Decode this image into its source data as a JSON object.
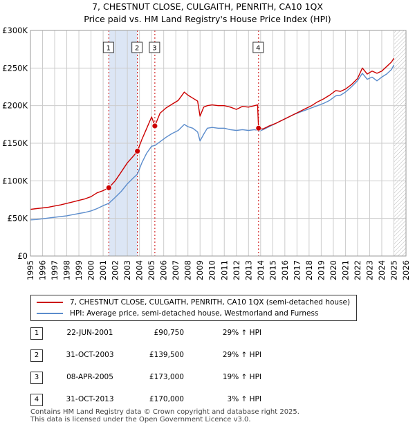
{
  "title_line1": "7, CHESTNUT CLOSE, CULGAITH, PENRITH, CA10 1QX",
  "title_line2": "Price paid vs. HM Land Registry's House Price Index (HPI)",
  "colors": {
    "property": "#cc0000",
    "hpi": "#5b8ccc",
    "shade": "#dce6f5",
    "marker_line": "#cc0000",
    "grid": "#cccccc"
  },
  "legend": {
    "property": "7, CHESTNUT CLOSE, CULGAITH, PENRITH, CA10 1QX (semi-detached house)",
    "hpi": "HPI: Average price, semi-detached house, Westmorland and Furness"
  },
  "sales": [
    {
      "num": "1",
      "date": "22-JUN-2001",
      "price": "£90,750",
      "hpi": "29% ↑ HPI"
    },
    {
      "num": "2",
      "date": "31-OCT-2003",
      "price": "£139,500",
      "hpi": "29% ↑ HPI"
    },
    {
      "num": "3",
      "date": "08-APR-2005",
      "price": "£173,000",
      "hpi": "19% ↑ HPI"
    },
    {
      "num": "4",
      "date": "31-OCT-2013",
      "price": "£170,000",
      "hpi": "3% ↑ HPI"
    }
  ],
  "footer_line1": "Contains HM Land Registry data © Crown copyright and database right 2025.",
  "footer_line2": "This data is licensed under the Open Government Licence v3.0.",
  "chart_data": {
    "type": "line",
    "title": "7, CHESTNUT CLOSE, CULGAITH, PENRITH, CA10 1QX",
    "subtitle": "Price paid vs. HM Land Registry's House Price Index (HPI)",
    "xlabel": "",
    "ylabel": "",
    "xlim": [
      1995,
      2026
    ],
    "ylim": [
      0,
      300000
    ],
    "y_ticks": [
      0,
      50000,
      100000,
      150000,
      200000,
      250000,
      300000
    ],
    "y_tick_labels": [
      "£0",
      "£50K",
      "£100K",
      "£150K",
      "£200K",
      "£250K",
      "£300K"
    ],
    "x_ticks": [
      1995,
      1996,
      1997,
      1998,
      1999,
      2000,
      2001,
      2002,
      2003,
      2004,
      2005,
      2006,
      2007,
      2008,
      2009,
      2010,
      2011,
      2012,
      2013,
      2014,
      2015,
      2016,
      2017,
      2018,
      2019,
      2020,
      2021,
      2022,
      2023,
      2024,
      2025,
      2026
    ],
    "grid": true,
    "shaded_ranges": [
      [
        2001.47,
        2003.83
      ]
    ],
    "hatched_from": 2025.0,
    "sale_markers": [
      {
        "label": "1",
        "x": 2001.47,
        "y": 90750
      },
      {
        "label": "2",
        "x": 2003.83,
        "y": 139500
      },
      {
        "label": "3",
        "x": 2005.27,
        "y": 173000
      },
      {
        "label": "4",
        "x": 2013.83,
        "y": 170000
      }
    ],
    "series": [
      {
        "name": "7, CHESTNUT CLOSE, CULGAITH, PENRITH, CA10 1QX (semi-detached house)",
        "color": "#cc0000",
        "x": [
          1995.0,
          1995.5,
          1996.0,
          1996.5,
          1997.0,
          1997.5,
          1998.0,
          1998.5,
          1999.0,
          1999.5,
          2000.0,
          2000.5,
          2001.0,
          2001.47,
          2002.0,
          2002.5,
          2003.0,
          2003.5,
          2003.83,
          2004.2,
          2004.6,
          2005.0,
          2005.27,
          2005.7,
          2006.2,
          2006.7,
          2007.2,
          2007.7,
          2008.0,
          2008.4,
          2008.8,
          2009.0,
          2009.3,
          2009.6,
          2010.0,
          2010.5,
          2011.0,
          2011.5,
          2012.0,
          2012.5,
          2013.0,
          2013.5,
          2013.75,
          2013.83,
          2014.2,
          2014.7,
          2015.2,
          2015.7,
          2016.2,
          2016.7,
          2017.2,
          2017.7,
          2018.2,
          2018.7,
          2019.2,
          2019.7,
          2020.2,
          2020.6,
          2021.0,
          2021.5,
          2022.0,
          2022.4,
          2022.8,
          2023.2,
          2023.6,
          2024.0,
          2024.4,
          2024.8,
          2025.0
        ],
        "y": [
          62000,
          63000,
          64000,
          65000,
          66500,
          68000,
          70000,
          72000,
          74000,
          76000,
          79000,
          84000,
          87000,
          90750,
          100000,
          112000,
          124000,
          133000,
          139500,
          155000,
          170000,
          185000,
          173000,
          190000,
          197000,
          202000,
          207000,
          218000,
          214000,
          210000,
          206000,
          186000,
          198000,
          200000,
          201000,
          200000,
          200000,
          198000,
          195000,
          199000,
          198000,
          200000,
          201000,
          170000,
          169000,
          173000,
          176000,
          180000,
          184000,
          188000,
          192000,
          196000,
          200000,
          205000,
          209000,
          214000,
          220000,
          219000,
          222000,
          228000,
          236000,
          250000,
          242000,
          246000,
          243000,
          246000,
          252000,
          258000,
          263000
        ]
      },
      {
        "name": "HPI: Average price, semi-detached house, Westmorland and Furness",
        "color": "#5b8ccc",
        "x": [
          1995.0,
          1995.5,
          1996.0,
          1996.5,
          1997.0,
          1997.5,
          1998.0,
          1998.5,
          1999.0,
          1999.5,
          2000.0,
          2000.5,
          2001.0,
          2001.47,
          2002.0,
          2002.5,
          2003.0,
          2003.5,
          2003.83,
          2004.2,
          2004.6,
          2005.0,
          2005.27,
          2005.7,
          2006.2,
          2006.7,
          2007.2,
          2007.7,
          2008.0,
          2008.4,
          2008.8,
          2009.0,
          2009.3,
          2009.6,
          2010.0,
          2010.5,
          2011.0,
          2011.5,
          2012.0,
          2012.5,
          2013.0,
          2013.5,
          2013.75,
          2013.83,
          2014.2,
          2014.7,
          2015.2,
          2015.7,
          2016.2,
          2016.7,
          2017.2,
          2017.7,
          2018.2,
          2018.7,
          2019.2,
          2019.7,
          2020.2,
          2020.6,
          2021.0,
          2021.5,
          2022.0,
          2022.4,
          2022.8,
          2023.2,
          2023.6,
          2024.0,
          2024.4,
          2024.8,
          2025.0
        ],
        "y": [
          48000,
          48500,
          49500,
          50500,
          51500,
          52500,
          53500,
          55000,
          56500,
          58000,
          60000,
          63000,
          67000,
          70000,
          78000,
          86000,
          96000,
          104000,
          109000,
          124000,
          137000,
          146000,
          147000,
          152000,
          158000,
          163000,
          167000,
          175000,
          172000,
          170000,
          165000,
          153000,
          162000,
          170000,
          171000,
          170000,
          170000,
          168000,
          167000,
          168000,
          167000,
          168000,
          167000,
          166000,
          168000,
          172000,
          176000,
          180000,
          184000,
          188000,
          191000,
          194000,
          197000,
          200000,
          203000,
          207000,
          213000,
          214000,
          218000,
          225000,
          233000,
          243000,
          235000,
          238000,
          233000,
          238000,
          242000,
          248000,
          254000
        ]
      }
    ]
  }
}
